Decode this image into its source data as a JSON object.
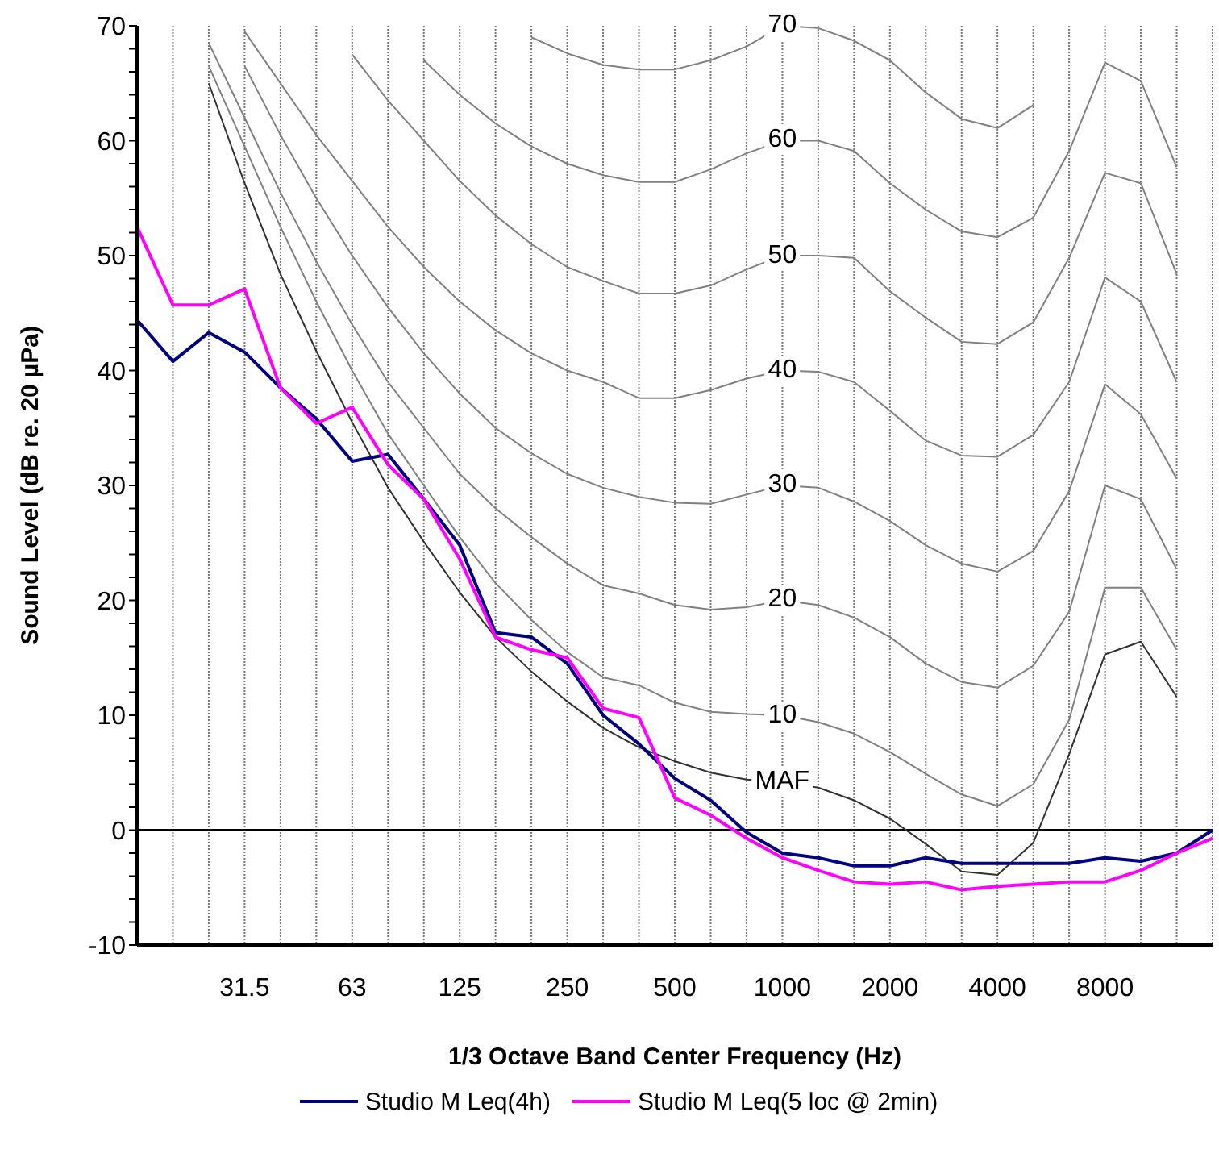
{
  "chart_data": {
    "type": "line",
    "xlabel": "1/3 Octave Band Center Frequency (Hz)",
    "ylabel": "Sound Level (dB re. 20 µPa)",
    "categories": [
      null,
      null,
      null,
      "31.5",
      null,
      null,
      "63",
      null,
      null,
      "125",
      null,
      null,
      "250",
      null,
      null,
      "500",
      null,
      null,
      "1000",
      null,
      null,
      "2000",
      null,
      null,
      "4000",
      null,
      null,
      "8000",
      null,
      null,
      null
    ],
    "ylim": [
      -10,
      70
    ],
    "yticks": [
      -10,
      {
        "value": -8,
        "label": null
      },
      {
        "value": -6,
        "label": null
      },
      {
        "value": -4,
        "label": null
      },
      {
        "value": -2,
        "label": null
      },
      0,
      {
        "value": 2,
        "label": null
      },
      {
        "value": 4,
        "label": null
      },
      {
        "value": 6,
        "label": null
      },
      {
        "value": 8,
        "label": null
      },
      10,
      {
        "value": 12,
        "label": null
      },
      {
        "value": 14,
        "label": null
      },
      {
        "value": 16,
        "label": null
      },
      {
        "value": 18,
        "label": null
      },
      20,
      {
        "value": 22,
        "label": null
      },
      {
        "value": 24,
        "label": null
      },
      {
        "value": 26,
        "label": null
      },
      {
        "value": 28,
        "label": null
      },
      30,
      {
        "value": 32,
        "label": null
      },
      {
        "value": 34,
        "label": null
      },
      {
        "value": 36,
        "label": null
      },
      {
        "value": 38,
        "label": null
      },
      40,
      {
        "value": 42,
        "label": null
      },
      {
        "value": 44,
        "label": null
      },
      {
        "value": 46,
        "label": null
      },
      {
        "value": 48,
        "label": null
      },
      50,
      {
        "value": 52,
        "label": null
      },
      {
        "value": 54,
        "label": null
      },
      {
        "value": 56,
        "label": null
      },
      {
        "value": 58,
        "label": null
      },
      60,
      {
        "value": 62,
        "label": null
      },
      {
        "value": 64,
        "label": null
      },
      {
        "value": 66,
        "label": null
      },
      {
        "value": 68,
        "label": null
      },
      70
    ],
    "grid": "x",
    "legend": "bottom",
    "ref_lines": [
      {
        "axis": "y",
        "value": 0,
        "color": "#000000"
      }
    ],
    "annotations": [
      {
        "text": "70",
        "x": "1000",
        "y": 70
      },
      {
        "text": "60",
        "x": "1000",
        "y": 60
      },
      {
        "text": "50",
        "x": "1000",
        "y": 50
      },
      {
        "text": "40",
        "x": "1000",
        "y": 40
      },
      {
        "text": "30",
        "x": "1000",
        "y": 30
      },
      {
        "text": "20",
        "x": "1000",
        "y": 20
      },
      {
        "text": "10",
        "x": "1000",
        "y": 10
      },
      {
        "text": "MAF",
        "x": "1000",
        "y": 4.2
      }
    ],
    "series": [
      {
        "color": "#303030",
        "values": [
          null,
          null,
          65.0,
          56.3,
          48.4,
          41.7,
          35.5,
          29.8,
          25.1,
          20.7,
          16.8,
          13.8,
          11.2,
          8.9,
          7.2,
          6.0,
          5.0,
          4.4,
          4.2,
          3.7,
          2.6,
          1.0,
          -1.2,
          -3.6,
          -3.9,
          -1.1,
          6.6,
          15.3,
          16.4,
          11.6,
          null
        ]
      },
      {
        "color": "#808080",
        "values": [
          null,
          null,
          66.5,
          59.5,
          52.5,
          46,
          40,
          34.5,
          30,
          25.5,
          21.5,
          18.3,
          15.5,
          13.3,
          12.6,
          11.1,
          10.3,
          10.1,
          10,
          9.4,
          8.4,
          6.8,
          4.9,
          3.1,
          2.1,
          4.0,
          9.6,
          21.1,
          21.1,
          15.7,
          null
        ]
      },
      {
        "color": "#808080",
        "values": [
          null,
          null,
          68.5,
          62,
          55.5,
          49.5,
          44,
          39,
          35,
          31,
          28,
          25.5,
          23.2,
          21.3,
          20.6,
          19.6,
          19.2,
          19.4,
          20,
          19.6,
          18.5,
          16.8,
          14.5,
          12.9,
          12.4,
          14.3,
          19.0,
          30.0,
          28.8,
          22.7,
          null
        ]
      },
      {
        "color": "#808080",
        "values": [
          null,
          null,
          null,
          66.5,
          60.5,
          55,
          50,
          45.5,
          41.5,
          38,
          35,
          32.8,
          31,
          29.8,
          29.0,
          28.5,
          28.4,
          29.2,
          30,
          29.8,
          28.6,
          26.9,
          24.8,
          23.2,
          22.5,
          24.3,
          29.5,
          38.8,
          36.2,
          30.6,
          null
        ]
      },
      {
        "color": "#808080",
        "values": [
          null,
          null,
          null,
          69.5,
          65,
          60.5,
          56.5,
          52.5,
          49,
          46,
          43.5,
          41.5,
          40,
          39,
          37.6,
          37.6,
          38.3,
          39.3,
          40,
          39.9,
          39.0,
          36.5,
          33.9,
          32.6,
          32.5,
          34.4,
          39.0,
          48.1,
          46.0,
          39.0,
          null
        ]
      },
      {
        "color": "#808080",
        "values": [
          null,
          null,
          null,
          null,
          null,
          null,
          67.5,
          63.5,
          60,
          56.5,
          53.5,
          51,
          49,
          47.8,
          46.7,
          46.7,
          47.4,
          48.8,
          50,
          50.0,
          49.8,
          46.9,
          44.6,
          42.5,
          42.3,
          44.2,
          49.8,
          57.2,
          56.3,
          48.4,
          null
        ]
      },
      {
        "color": "#808080",
        "values": [
          null,
          null,
          null,
          null,
          null,
          null,
          null,
          null,
          67,
          64,
          61.5,
          59.5,
          58,
          57,
          56.4,
          56.4,
          57.5,
          58.9,
          60,
          60,
          59.1,
          56.3,
          54.0,
          52.1,
          51.6,
          53.3,
          59.1,
          66.8,
          65.2,
          57.7,
          null
        ]
      },
      {
        "color": "#808080",
        "values": [
          null,
          null,
          null,
          null,
          null,
          null,
          null,
          null,
          null,
          null,
          null,
          69,
          67.6,
          66.6,
          66.2,
          66.2,
          67.0,
          68.2,
          70,
          69.8,
          68.7,
          67.0,
          64.2,
          61.9,
          61.1,
          63.1,
          null,
          null,
          null,
          null,
          null
        ]
      },
      {
        "name": "Studio M Leq(4h)",
        "color": "#000080",
        "values": [
          44.4,
          40.8,
          43.3,
          41.6,
          38.5,
          35.8,
          32.1,
          32.7,
          28.8,
          24.8,
          17.2,
          16.8,
          14.5,
          10.0,
          7.5,
          4.5,
          2.6,
          -0.2,
          -2.0,
          -2.4,
          -3.1,
          -3.1,
          -2.4,
          -2.9,
          -2.9,
          -2.9,
          -2.9,
          -2.4,
          -2.7,
          -2.0,
          0
        ]
      },
      {
        "name": "Studio M Leq(5 loc @ 2min)",
        "color": "#ff00ff",
        "values": [
          52.5,
          45.7,
          45.7,
          47.1,
          38.5,
          35.4,
          36.8,
          31.8,
          28.8,
          23.6,
          16.8,
          15.7,
          15.0,
          10.6,
          9.8,
          2.8,
          1.3,
          -0.7,
          -2.4,
          -3.5,
          -4.5,
          -4.7,
          -4.5,
          -5.2,
          -4.9,
          -4.7,
          -4.5,
          -4.5,
          -3.5,
          -2.0,
          -0.7
        ]
      }
    ]
  }
}
